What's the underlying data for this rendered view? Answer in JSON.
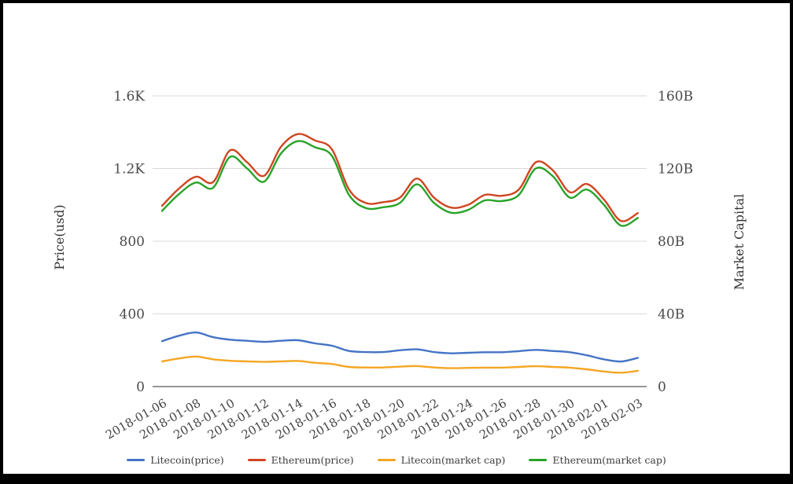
{
  "chart_data": {
    "type": "line",
    "title": "",
    "smooth": true,
    "grid": true,
    "legend_position": "bottom",
    "x": [
      "2018-01-06",
      "2018-01-07",
      "2018-01-08",
      "2018-01-09",
      "2018-01-10",
      "2018-01-11",
      "2018-01-12",
      "2018-01-13",
      "2018-01-14",
      "2018-01-15",
      "2018-01-16",
      "2018-01-17",
      "2018-01-18",
      "2018-01-19",
      "2018-01-20",
      "2018-01-21",
      "2018-01-22",
      "2018-01-23",
      "2018-01-24",
      "2018-01-25",
      "2018-01-26",
      "2018-01-27",
      "2018-01-28",
      "2018-01-29",
      "2018-01-30",
      "2018-01-31",
      "2018-02-01",
      "2018-02-02",
      "2018-02-03"
    ],
    "x_tick_labels": [
      "2018-01-06",
      "2018-01-08",
      "2018-01-10",
      "2018-01-12",
      "2018-01-14",
      "2018-01-16",
      "2018-01-18",
      "2018-01-20",
      "2018-01-22",
      "2018-01-24",
      "2018-01-26",
      "2018-01-28",
      "2018-01-30",
      "2018-02-01",
      "2018-02-03"
    ],
    "axes": {
      "left": {
        "label": "Price(usd)",
        "ticks": [
          "0",
          "400",
          "800",
          "1.2K",
          "1.6K"
        ],
        "tick_values": [
          0,
          400,
          800,
          1200,
          1600
        ],
        "range": [
          0,
          1600
        ]
      },
      "right": {
        "label": "Market Capital",
        "ticks": [
          "0",
          "40B",
          "80B",
          "120B",
          "160B"
        ],
        "tick_values": [
          0,
          40,
          80,
          120,
          160
        ],
        "range": [
          0,
          160
        ],
        "unit": "billions"
      }
    },
    "series": [
      {
        "name": "Litecoin(price)",
        "axis": "left",
        "color": "#4473c5",
        "values": [
          250,
          280,
          298,
          272,
          258,
          252,
          246,
          252,
          255,
          238,
          225,
          196,
          190,
          190,
          200,
          205,
          190,
          183,
          186,
          189,
          189,
          195,
          202,
          196,
          189,
          172,
          150,
          138,
          158
        ]
      },
      {
        "name": "Ethereum(price)",
        "axis": "left",
        "color": "#cf4522",
        "values": [
          995,
          1090,
          1155,
          1125,
          1300,
          1235,
          1160,
          1320,
          1390,
          1355,
          1305,
          1085,
          1010,
          1015,
          1040,
          1145,
          1040,
          985,
          1000,
          1055,
          1050,
          1085,
          1235,
          1190,
          1070,
          1115,
          1030,
          912,
          955
        ]
      },
      {
        "name": "Litecoin(market cap)",
        "axis": "right",
        "color": "#f5a623",
        "values": [
          13.8,
          15.5,
          16.5,
          15.0,
          14.2,
          13.9,
          13.6,
          13.9,
          14.1,
          13.1,
          12.4,
          10.8,
          10.5,
          10.5,
          11.0,
          11.3,
          10.5,
          10.1,
          10.3,
          10.4,
          10.4,
          10.8,
          11.2,
          10.8,
          10.4,
          9.5,
          8.3,
          7.6,
          8.7
        ]
      },
      {
        "name": "Ethereum(market cap)",
        "axis": "right",
        "color": "#28a228",
        "values": [
          96.7,
          106.0,
          112.3,
          109.4,
          126.4,
          120.1,
          112.8,
          128.3,
          135.1,
          131.7,
          126.9,
          105.5,
          98.2,
          98.7,
          101.1,
          111.3,
          101.1,
          95.7,
          97.2,
          102.5,
          102.1,
          105.5,
          120.1,
          115.7,
          104.0,
          108.4,
          100.1,
          88.6,
          92.8
        ]
      }
    ],
    "colors": {
      "grid_line": "#d9d9d9",
      "axis_line": "#2e2e2e",
      "tick_text": "#4a4a4a"
    }
  }
}
